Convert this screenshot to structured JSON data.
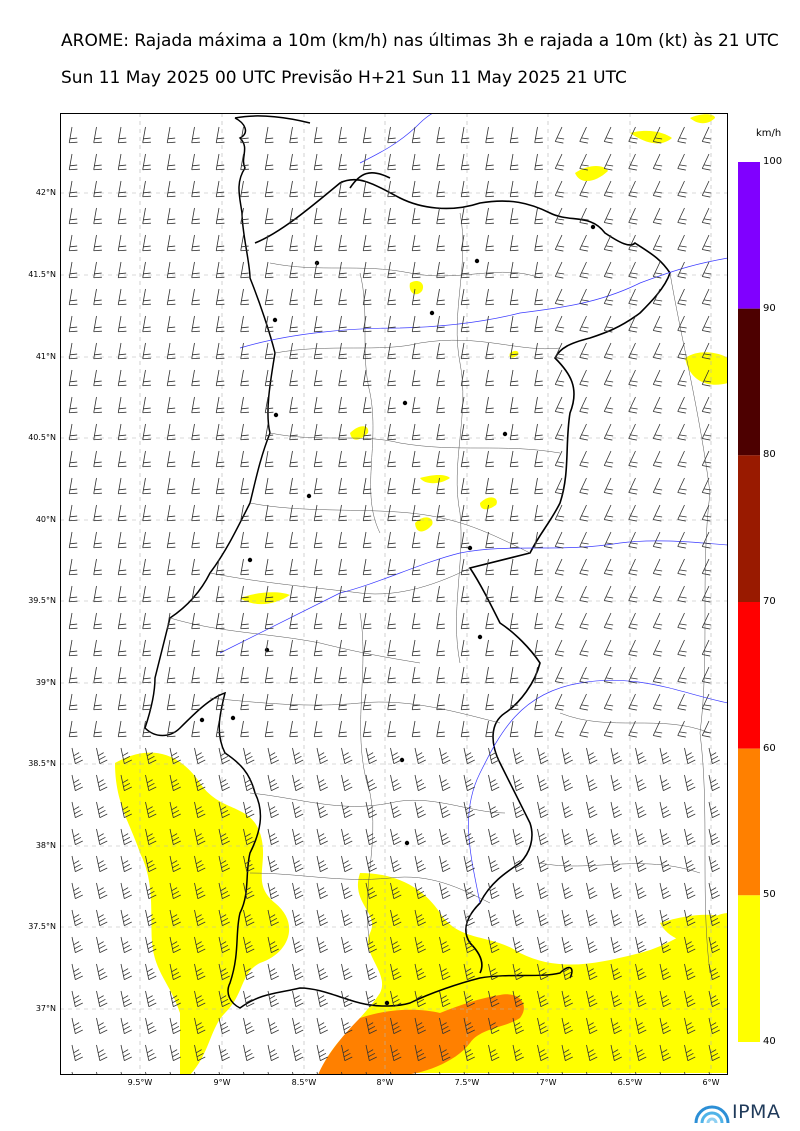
{
  "header": {
    "title": "AROME: Rajada máxima a 10m (km/h) nas últimas 3h e rajada a 10m (kt) às 21 UTC",
    "subtitle": "Sun 11 May 2025 00 UTC Previsão H+21 Sun 11 May 2025 21 UTC"
  },
  "axes": {
    "lat_labels": [
      "42°N",
      "41.5°N",
      "41°N",
      "40.5°N",
      "40°N",
      "39.5°N",
      "39°N",
      "38.5°N",
      "38°N",
      "37.5°N",
      "37°N"
    ],
    "lon_labels": [
      "9.5°W",
      "9°W",
      "8.5°W",
      "8°W",
      "7.5°W",
      "7°W",
      "6.5°W",
      "6°W"
    ]
  },
  "colorbar": {
    "unit": "km/h",
    "labels": [
      "100",
      "90",
      "80",
      "70",
      "60",
      "50",
      "40"
    ],
    "colors": [
      "#8000ff",
      "#4d0000",
      "#991a00",
      "#ff0000",
      "#ff8000",
      "#ffff00"
    ]
  },
  "logo": {
    "text": "IPMA"
  }
}
